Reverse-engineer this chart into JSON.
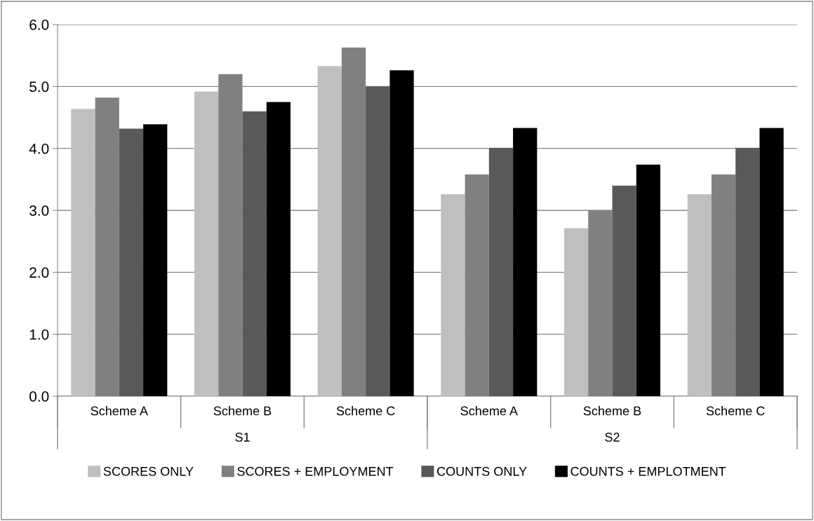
{
  "chart_data": {
    "type": "bar",
    "categories": [
      "Scheme A",
      "Scheme B",
      "Scheme C",
      "Scheme A",
      "Scheme B",
      "Scheme C"
    ],
    "series": [
      {
        "name": "SCORES ONLY",
        "color": "#bfbfbf",
        "values": [
          4.64,
          4.92,
          5.33,
          3.26,
          2.71,
          3.26
        ]
      },
      {
        "name": "SCORES + EMPLOYMENT",
        "color": "#808080",
        "values": [
          4.82,
          5.2,
          5.63,
          3.58,
          3.0,
          3.58
        ]
      },
      {
        "name": "COUNTS ONLY",
        "color": "#595959",
        "values": [
          4.32,
          4.6,
          5.0,
          4.01,
          3.4,
          4.01
        ]
      },
      {
        "name": "COUNTS + EMPLOTMENT",
        "color": "#000000",
        "values": [
          4.39,
          4.75,
          5.26,
          4.33,
          3.74,
          4.33
        ]
      }
    ],
    "annotations": [
      "S1",
      "S2"
    ],
    "ylim": [
      0,
      6
    ],
    "yticks": [
      {
        "value": 0,
        "label": "0.0"
      },
      {
        "value": 1,
        "label": "1.0"
      },
      {
        "value": 2,
        "label": "2.0"
      },
      {
        "value": 3,
        "label": "3.0"
      },
      {
        "value": 4,
        "label": "4.0"
      },
      {
        "value": 5,
        "label": "5.0"
      },
      {
        "value": 6,
        "label": "6.0"
      }
    ],
    "grid": "y",
    "legend": "bottom"
  }
}
